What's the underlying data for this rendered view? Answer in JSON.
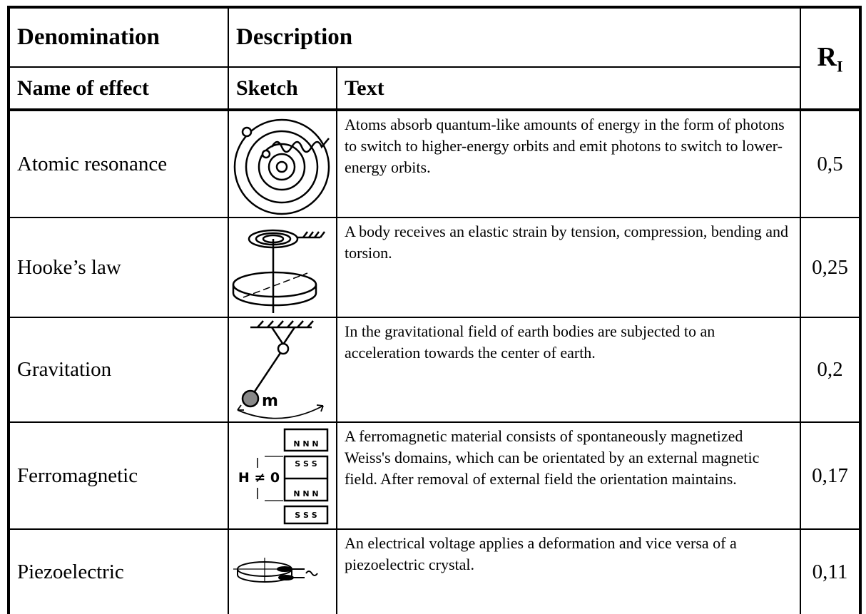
{
  "table": {
    "header": {
      "denomination": "Denomination",
      "description": "Description",
      "ri": {
        "symbol": "R",
        "subscript": "I"
      }
    },
    "subheader": {
      "name": "Name of effect",
      "sketch": "Sketch",
      "text": "Text"
    },
    "rows": [
      {
        "name": "Atomic resonance",
        "text": "Atoms absorb quantum-like amounts of energy in the form of photons to switch to higher-energy orbits and emit photons to switch to lower-energy orbits.",
        "ri": "0,5"
      },
      {
        "name": "Hooke’s law",
        "text": "A body receives an elastic strain by tension, compression, bending and torsion.",
        "ri": "0,25"
      },
      {
        "name": "Gravitation",
        "text": "In the gravitational field of earth bodies are subjected to an acceleration towards the center of earth.",
        "ri": "0,2",
        "sketch_labels": [
          "m"
        ]
      },
      {
        "name": "Ferromagnetic",
        "text": "A ferromagnetic material consists of spontaneously magnetized Weiss's domains, which can be orientated by an external magnetic field. After removal of external field the orientation maintains.",
        "ri": "0,17",
        "sketch_labels": [
          "N N N",
          "S S S",
          "N N N",
          "S S S",
          "H ≠ 0"
        ]
      },
      {
        "name": "Piezoelectric",
        "text": "An electrical voltage applies a deformation and vice versa of a piezoelectric crystal.",
        "ri": "0,11"
      }
    ]
  }
}
